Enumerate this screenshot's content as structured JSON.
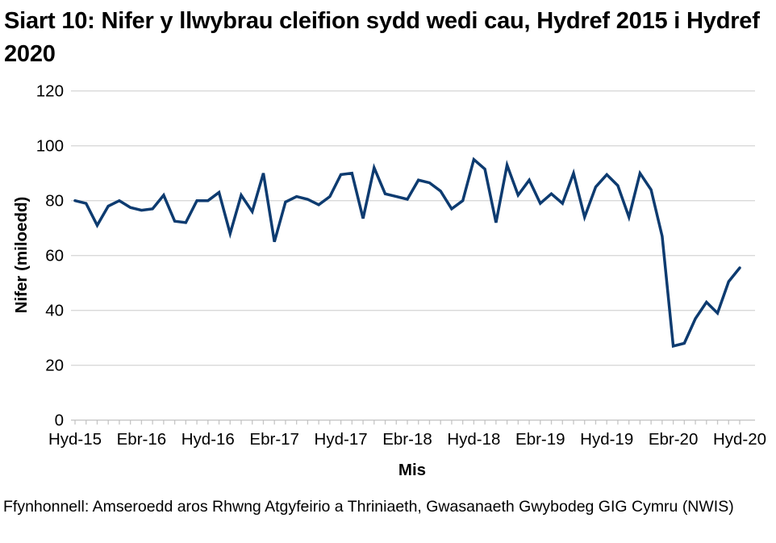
{
  "page": {
    "title": "Siart 10: Nifer y llwybrau cleifion sydd wedi cau, Hydref 2015 i Hydref 2020",
    "source_note": "Ffynhonnell: Amseroedd aros Rhwng Atgyfeirio a Thriniaeth, Gwasanaeth Gwybodeg GIG Cymru (NWIS)"
  },
  "chart_data": {
    "type": "line",
    "title": "Siart 10: Nifer y llwybrau cleifion sydd wedi cau, Hydref 2015 i Hydref 2020",
    "xlabel": "Mis",
    "ylabel": "Nifer (miloedd)",
    "ylim": [
      0,
      120
    ],
    "y_ticks": [
      0,
      20,
      40,
      60,
      80,
      100,
      120
    ],
    "x_tick_labels": [
      "Hyd-15",
      "Ebr-16",
      "Hyd-16",
      "Ebr-17",
      "Hyd-17",
      "Ebr-18",
      "Hyd-18",
      "Ebr-19",
      "Hyd-19",
      "Ebr-20",
      "Hyd-20"
    ],
    "x_tick_month_indices": [
      0,
      6,
      12,
      18,
      24,
      30,
      36,
      42,
      48,
      54,
      60
    ],
    "x_start": "Hyd-15",
    "x_end": "Hyd-20",
    "months_total": 61,
    "grid": "horizontal",
    "legend_position": "none",
    "line_color": "#0d3b70",
    "gridline_color": "#d9d9d9",
    "axis_color": "#c6c6c6",
    "values": [
      80,
      79,
      71,
      78,
      80,
      77.5,
      76.5,
      77,
      82,
      72.5,
      72,
      80,
      80,
      83,
      68,
      82,
      76,
      90,
      65,
      79.5,
      81.5,
      80.5,
      78.5,
      81.5,
      89.5,
      90,
      73.5,
      92,
      82.5,
      81.5,
      80.5,
      87.5,
      86.5,
      83.5,
      77,
      80,
      95,
      91.5,
      72,
      93,
      82,
      87.5,
      79,
      82.5,
      79,
      90,
      74,
      85,
      89.5,
      85.5,
      74,
      90,
      84,
      67,
      27,
      28,
      37,
      43,
      39,
      50.5,
      55.5
    ]
  }
}
